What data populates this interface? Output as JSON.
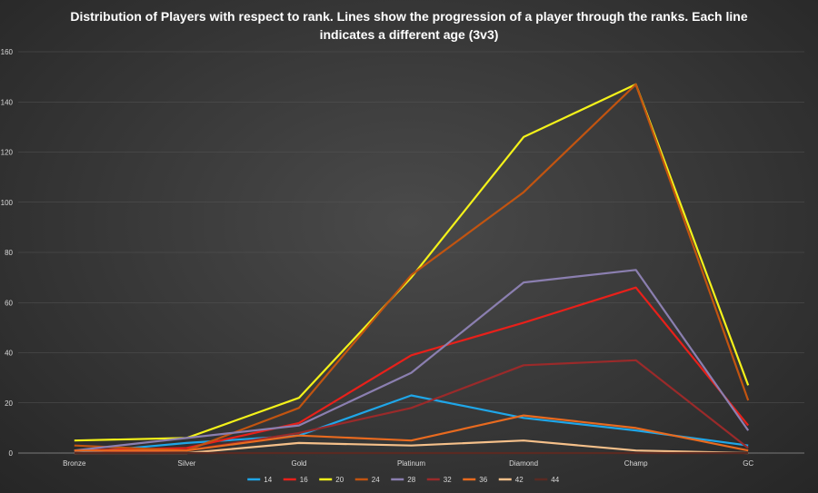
{
  "chart_data": {
    "type": "line",
    "title": "Distribution of Players with respect to rank. Lines show the progression of a player through the ranks. Each line indicates a different age (3v3)",
    "xlabel": "",
    "ylabel": "",
    "categories": [
      "Bronze",
      "Silver",
      "Gold",
      "Platinum",
      "Diamond",
      "Champ",
      "GC"
    ],
    "ylim": [
      0,
      160
    ],
    "yticks": [
      0,
      20,
      40,
      60,
      80,
      100,
      120,
      140,
      160
    ],
    "grid": true,
    "legend_position": "bottom",
    "series": [
      {
        "name": "14",
        "color": "#1fa6e8",
        "values": [
          0,
          4,
          7,
          23,
          14,
          9,
          3
        ]
      },
      {
        "name": "16",
        "color": "#e8201a",
        "values": [
          1,
          2,
          12,
          39,
          52,
          66,
          11
        ]
      },
      {
        "name": "20",
        "color": "#f4f21a",
        "values": [
          5,
          6,
          22,
          70,
          126,
          147,
          27
        ]
      },
      {
        "name": "24",
        "color": "#c25410",
        "values": [
          3,
          1,
          18,
          71,
          104,
          147,
          21
        ]
      },
      {
        "name": "28",
        "color": "#8b7fb0",
        "values": [
          1,
          6,
          11,
          32,
          68,
          73,
          9
        ]
      },
      {
        "name": "32",
        "color": "#9a2a2a",
        "values": [
          0,
          1,
          8,
          18,
          35,
          37,
          2
        ]
      },
      {
        "name": "36",
        "color": "#e86a1f",
        "values": [
          1,
          1,
          7,
          5,
          15,
          10,
          1
        ]
      },
      {
        "name": "42",
        "color": "#f5c08a",
        "values": [
          0,
          0,
          4,
          3,
          5,
          1,
          0
        ]
      },
      {
        "name": "44",
        "color": "#5a2a22",
        "values": [
          0,
          0,
          0,
          0,
          0,
          0,
          0
        ]
      }
    ]
  }
}
